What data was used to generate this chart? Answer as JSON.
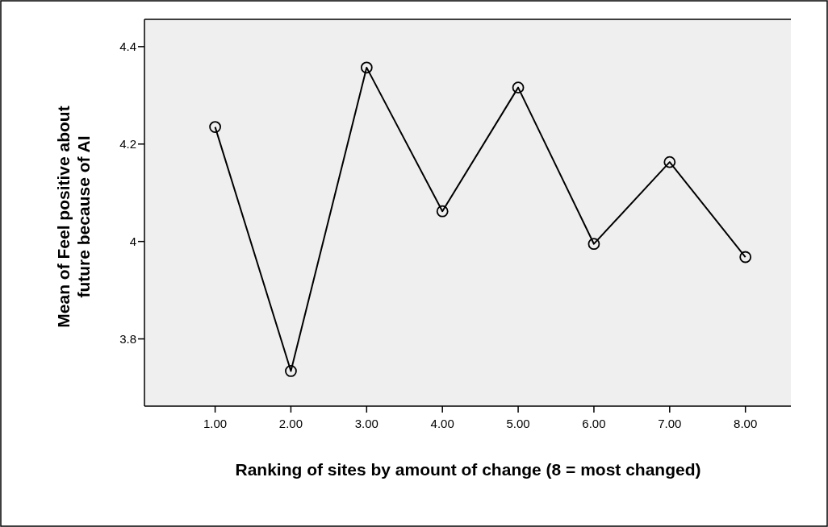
{
  "chart_data": {
    "type": "line",
    "xlabel": "Ranking of sites by amount of change (8 = most changed)",
    "ylabel": "Mean of Feel positive about\nfuture because of AI",
    "x": [
      1,
      2,
      3,
      4,
      5,
      6,
      7,
      8
    ],
    "series": [
      {
        "color": "#000000",
        "values": [
          4.235,
          3.734,
          4.357,
          4.062,
          4.316,
          3.995,
          4.163,
          3.968
        ]
      }
    ],
    "xlim": [
      0.067,
      8.6
    ],
    "xticks": [
      {
        "value": 1,
        "label": "1.00"
      },
      {
        "value": 2,
        "label": "2.00"
      },
      {
        "value": 3,
        "label": "3.00"
      },
      {
        "value": 4,
        "label": "4.00"
      },
      {
        "value": 5,
        "label": "5.00"
      },
      {
        "value": 6,
        "label": "6.00"
      },
      {
        "value": 7,
        "label": "7.00"
      },
      {
        "value": 8,
        "label": "8.00"
      }
    ],
    "ylim": [
      3.662,
      4.456
    ],
    "yticks": [
      3.8,
      {
        "value": 4,
        "label": "4"
      },
      4.2,
      4.4
    ],
    "marker": "circle",
    "line_style": "solid",
    "grid": false
  }
}
